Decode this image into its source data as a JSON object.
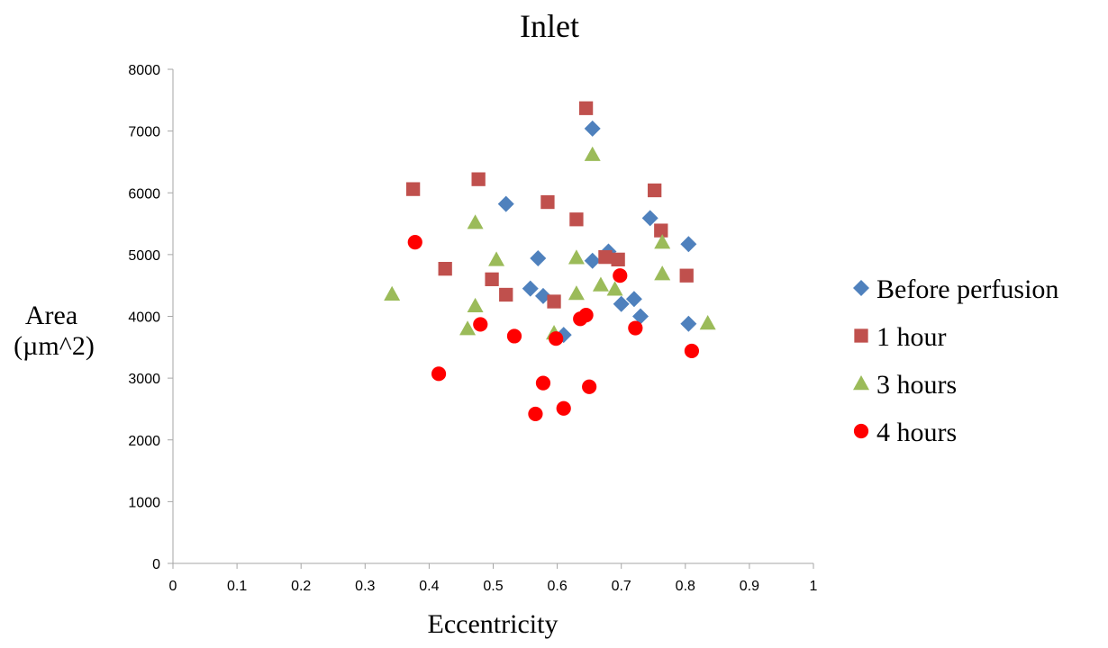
{
  "chart_data": {
    "type": "scatter",
    "title": "Inlet",
    "xlabel": "Eccentricity",
    "ylabel_lines": [
      "Area",
      "(µm^2)"
    ],
    "xlim": [
      0,
      1
    ],
    "ylim": [
      0,
      8000
    ],
    "x_ticks": [
      "0",
      "0.1",
      "0.2",
      "0.3",
      "0.4",
      "0.5",
      "0.6",
      "0.7",
      "0.8",
      "0.9",
      "1"
    ],
    "y_ticks": [
      "0",
      "1000",
      "2000",
      "3000",
      "4000",
      "5000",
      "6000",
      "7000",
      "8000"
    ],
    "grid": false,
    "legend_position": "right",
    "series": [
      {
        "name": "Before perfusion",
        "marker": "diamond",
        "color": "#4f81bd",
        "points": [
          [
            0.52,
            5820
          ],
          [
            0.655,
            7040
          ],
          [
            0.57,
            4940
          ],
          [
            0.558,
            4450
          ],
          [
            0.578,
            4330
          ],
          [
            0.61,
            3700
          ],
          [
            0.655,
            4900
          ],
          [
            0.68,
            5050
          ],
          [
            0.72,
            4280
          ],
          [
            0.7,
            4200
          ],
          [
            0.745,
            5590
          ],
          [
            0.73,
            4000
          ],
          [
            0.805,
            5170
          ],
          [
            0.805,
            3880
          ]
        ]
      },
      {
        "name": "1 hour",
        "marker": "square",
        "color": "#c0504d",
        "points": [
          [
            0.375,
            6060
          ],
          [
            0.477,
            6220
          ],
          [
            0.425,
            4770
          ],
          [
            0.498,
            4600
          ],
          [
            0.52,
            4350
          ],
          [
            0.585,
            5850
          ],
          [
            0.595,
            4240
          ],
          [
            0.63,
            5570
          ],
          [
            0.645,
            7370
          ],
          [
            0.675,
            4960
          ],
          [
            0.695,
            4920
          ],
          [
            0.752,
            6040
          ],
          [
            0.762,
            5390
          ],
          [
            0.802,
            4660
          ]
        ]
      },
      {
        "name": "3 hours",
        "marker": "triangle",
        "color": "#9bbb59",
        "points": [
          [
            0.342,
            4360
          ],
          [
            0.472,
            5520
          ],
          [
            0.472,
            4170
          ],
          [
            0.46,
            3800
          ],
          [
            0.505,
            4920
          ],
          [
            0.595,
            3730
          ],
          [
            0.63,
            4950
          ],
          [
            0.63,
            4370
          ],
          [
            0.655,
            6620
          ],
          [
            0.668,
            4510
          ],
          [
            0.69,
            4440
          ],
          [
            0.764,
            5200
          ],
          [
            0.764,
            4690
          ],
          [
            0.835,
            3890
          ]
        ]
      },
      {
        "name": "4 hours",
        "marker": "circle",
        "color": "#ff0000",
        "points": [
          [
            0.378,
            5200
          ],
          [
            0.415,
            3070
          ],
          [
            0.48,
            3870
          ],
          [
            0.533,
            3680
          ],
          [
            0.566,
            2420
          ],
          [
            0.578,
            2920
          ],
          [
            0.598,
            3640
          ],
          [
            0.61,
            2510
          ],
          [
            0.636,
            3960
          ],
          [
            0.645,
            4020
          ],
          [
            0.65,
            2860
          ],
          [
            0.698,
            4660
          ],
          [
            0.722,
            3810
          ],
          [
            0.81,
            3440
          ]
        ]
      }
    ]
  }
}
